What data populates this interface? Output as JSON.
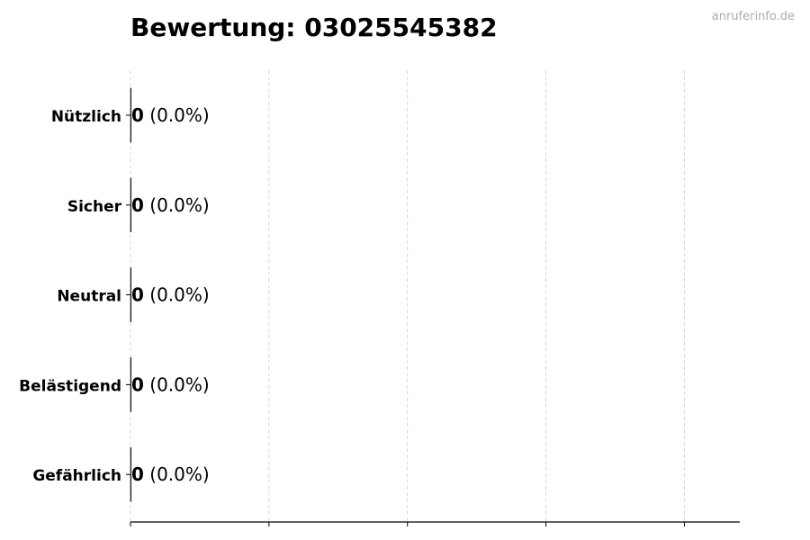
{
  "watermark": "anruferinfo.de",
  "chart_data": {
    "type": "bar",
    "orientation": "horizontal",
    "title": "Bewertung: 03025545382",
    "categories": [
      "Nützlich",
      "Sicher",
      "Neutral",
      "Belästigend",
      "Gefährlich"
    ],
    "values": [
      0,
      0,
      0,
      0,
      0
    ],
    "value_labels": [
      "0",
      "0",
      "0",
      "0",
      "0"
    ],
    "percent_labels": [
      "(0.0%)",
      "(0.0%)",
      "(0.0%)",
      "(0.0%)",
      "(0.0%)"
    ],
    "xlabel": "",
    "ylabel": "",
    "xlim": [
      0,
      4.4
    ],
    "xticks": [
      0,
      1,
      2,
      3,
      4
    ],
    "xtick_labels_shown": false,
    "grid": "x dashed",
    "colors": {
      "bar_edge": "#000000",
      "grid": "#cccccc",
      "watermark": "#aaaaaa"
    }
  }
}
